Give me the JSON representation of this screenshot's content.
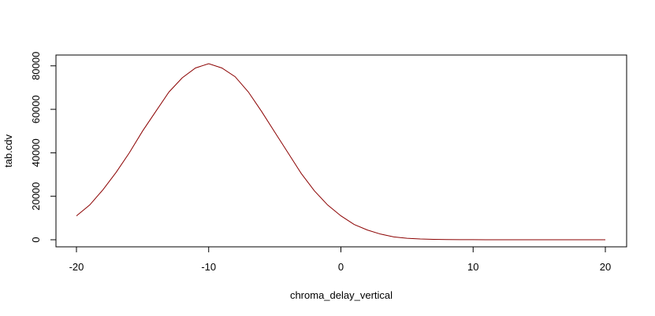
{
  "chart_data": {
    "type": "line",
    "title": "",
    "xlabel": "chroma_delay_vertical",
    "ylabel": "tab.cdv",
    "xlim": [
      -20,
      20
    ],
    "ylim": [
      0,
      81000
    ],
    "grid": false,
    "x_ticks": [
      -20,
      -10,
      0,
      10,
      20
    ],
    "x_tick_labels": [
      "-20",
      "-10",
      "0",
      "10",
      "20"
    ],
    "y_ticks": [
      0,
      20000,
      40000,
      60000,
      80000
    ],
    "y_tick_labels": [
      "0",
      "20000",
      "40000",
      "60000",
      "80000"
    ],
    "line_color": "#8b0000",
    "series": [
      {
        "x": [
          -20,
          -19,
          -18,
          -17,
          -16,
          -15,
          -14,
          -13,
          -12,
          -11,
          -10,
          -9,
          -8,
          -7,
          -6,
          -5,
          -4,
          -3,
          -2,
          -1,
          0,
          1,
          2,
          3,
          4,
          5,
          6,
          7,
          8,
          9,
          10,
          11,
          12,
          13,
          14,
          15,
          16,
          17,
          18,
          19,
          20
        ],
        "values": [
          11000,
          16000,
          23000,
          31000,
          40000,
          50000,
          59000,
          68000,
          74500,
          79000,
          81000,
          79000,
          75000,
          68000,
          59000,
          49500,
          40000,
          30500,
          22500,
          16000,
          11000,
          7000,
          4500,
          2600,
          1300,
          700,
          350,
          180,
          90,
          45,
          20,
          10,
          5,
          2,
          1,
          0,
          0,
          0,
          0,
          0,
          0
        ]
      }
    ]
  }
}
